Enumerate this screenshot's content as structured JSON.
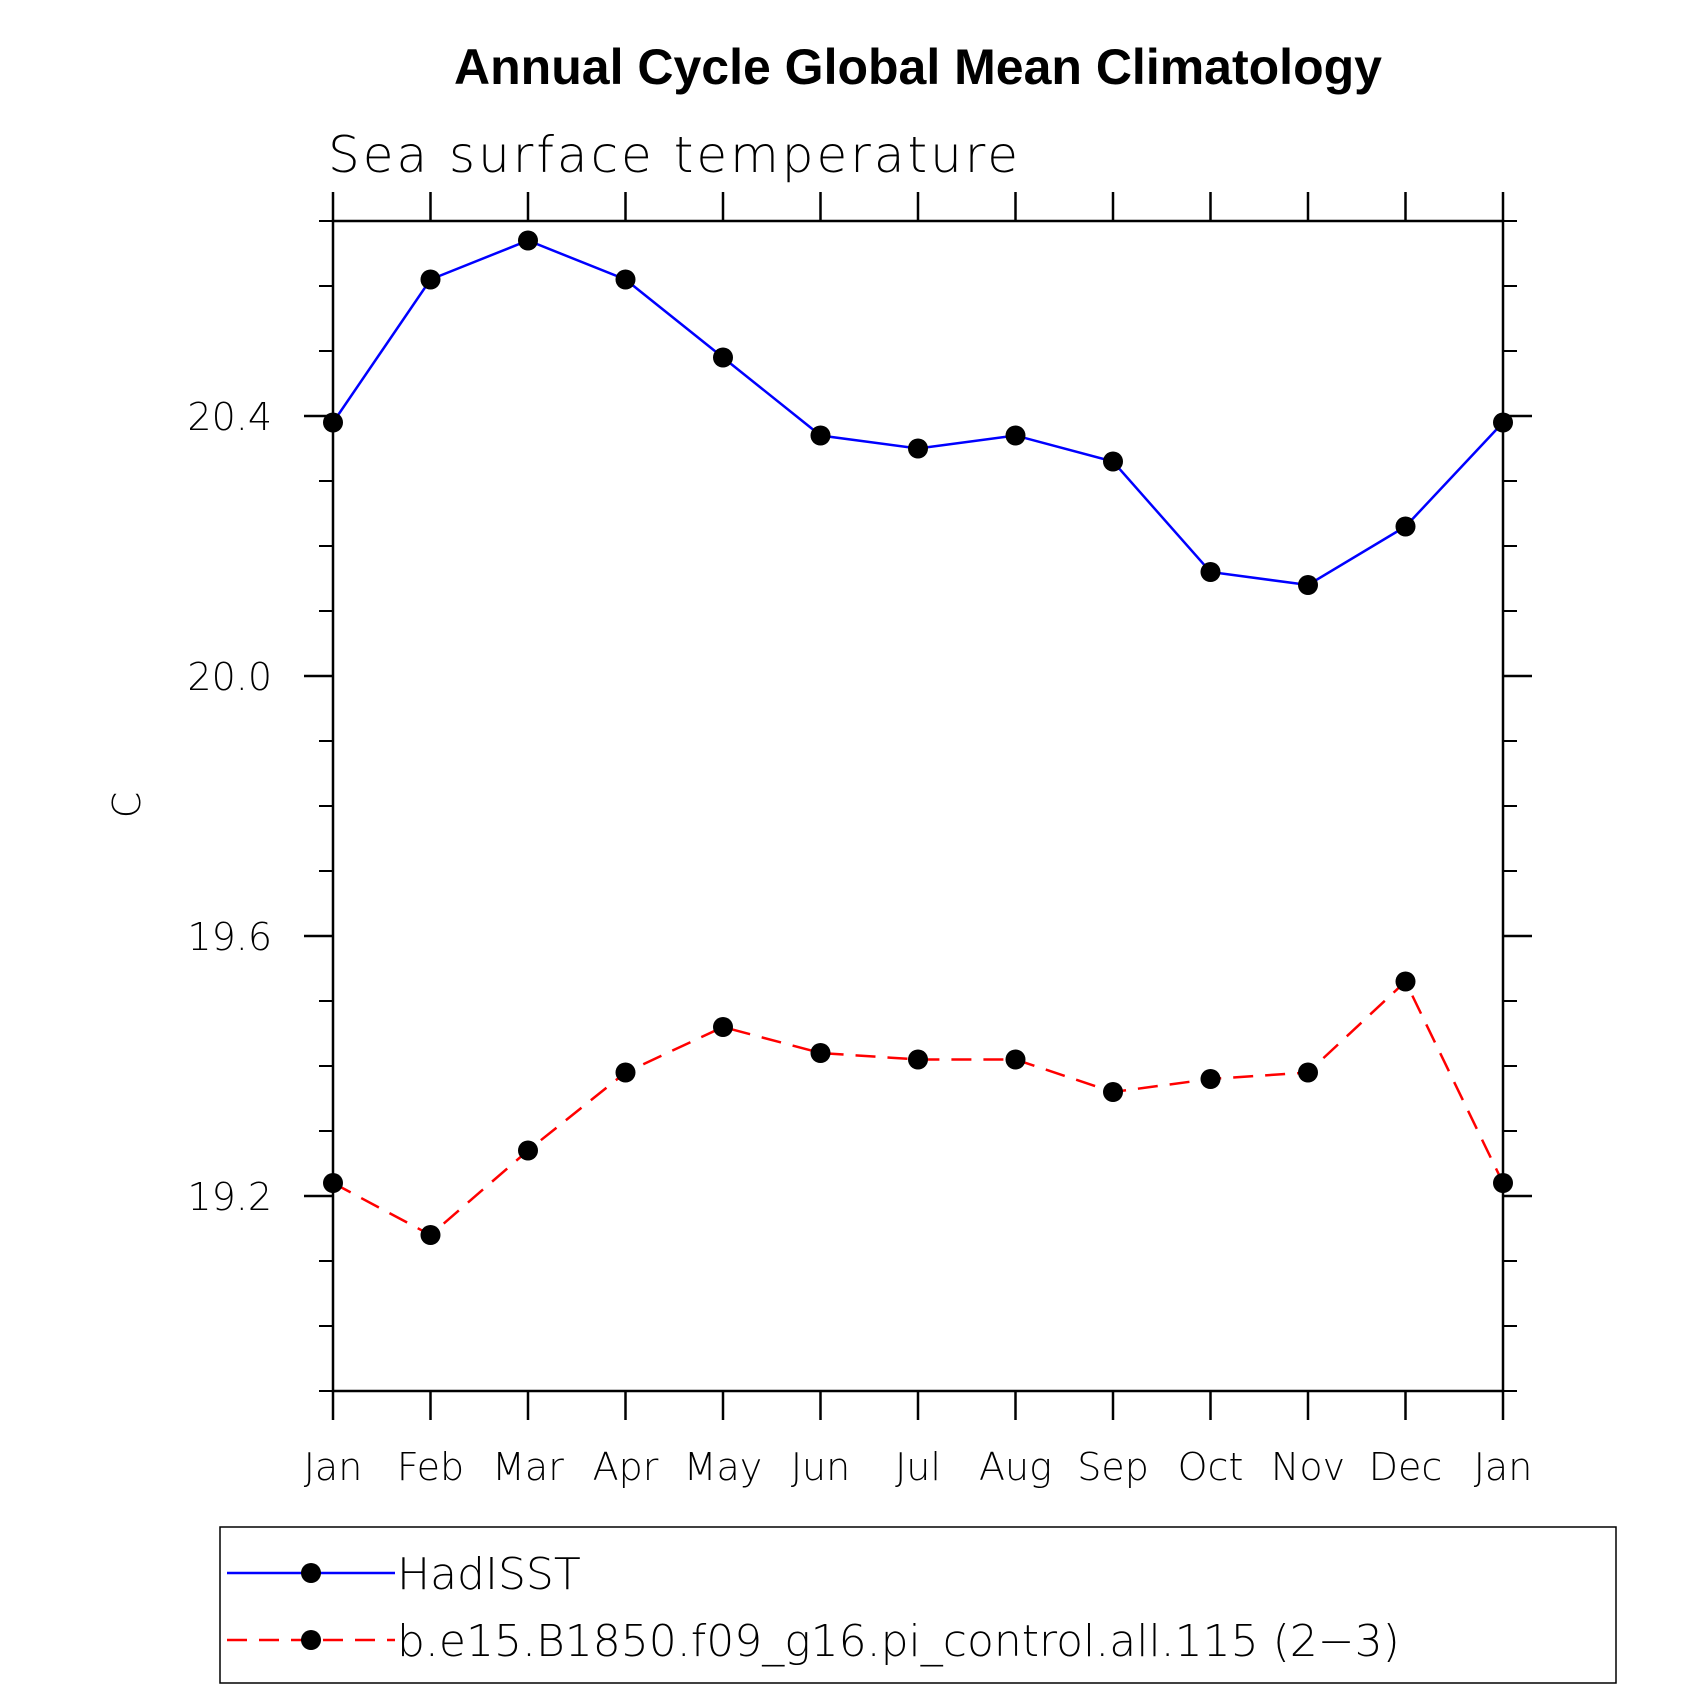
{
  "chart_data": {
    "type": "line",
    "title": "Annual Cycle Global Mean Climatology",
    "subtitle": "Sea surface temperature",
    "ylabel": "C",
    "xlabel": "",
    "categories": [
      "Jan",
      "Feb",
      "Mar",
      "Apr",
      "May",
      "Jun",
      "Jul",
      "Aug",
      "Sep",
      "Oct",
      "Nov",
      "Dec",
      "Jan"
    ],
    "ylim": [
      18.9,
      20.7
    ],
    "y_major_ticks": [
      19.2,
      19.6,
      20.0,
      20.4
    ],
    "y_tick_labels": [
      "19.2",
      "19.6",
      "20.0",
      "20.4"
    ],
    "y_minor_step": 0.1,
    "grid": false,
    "legend_position": "bottom",
    "series": [
      {
        "name": "HadISST",
        "color": "#0000ff",
        "line_style": "solid",
        "marker": "filled-circle",
        "values": [
          20.39,
          20.61,
          20.67,
          20.61,
          20.49,
          20.37,
          20.35,
          20.37,
          20.33,
          20.16,
          20.14,
          20.23,
          20.39
        ]
      },
      {
        "name": "b.e15.B1850.f09_g16.pi_control.all.115 (2−3)",
        "color": "#ff0000",
        "line_style": "dashed",
        "marker": "filled-circle",
        "values": [
          19.22,
          19.14,
          19.27,
          19.39,
          19.46,
          19.42,
          19.41,
          19.41,
          19.36,
          19.38,
          19.39,
          19.53,
          19.22
        ]
      }
    ]
  }
}
